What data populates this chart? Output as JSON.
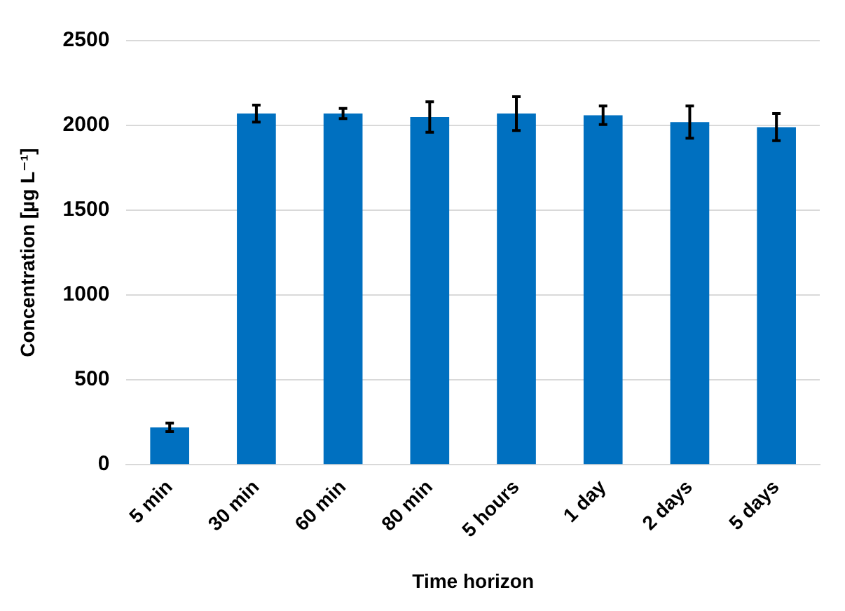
{
  "chart_data": {
    "type": "bar",
    "xlabel": "Time horizon",
    "ylabel": "Concentration [µg L⁻¹]",
    "categories": [
      "5 min",
      "30 min",
      "60 min",
      "80 min",
      "5 hours",
      "1 day",
      "2 days",
      "5 days"
    ],
    "values": [
      220,
      2070,
      2070,
      2050,
      2070,
      2060,
      2020,
      1990
    ],
    "errors": [
      25,
      50,
      30,
      90,
      100,
      55,
      95,
      80
    ],
    "color": "#0070c0",
    "ylim": [
      0,
      2500
    ],
    "yticks": [
      0,
      500,
      1000,
      1500,
      2000,
      2500
    ],
    "grid": "y"
  }
}
